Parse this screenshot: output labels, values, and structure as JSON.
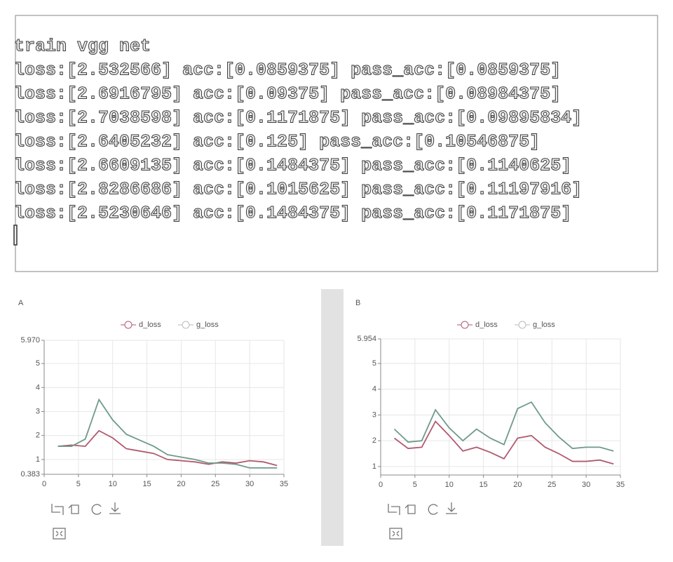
{
  "terminal": {
    "lines": [
      "train vgg net",
      "loss:[2.532566] acc:[0.0859375] pass_acc:[0.0859375]",
      "loss:[2.6916795] acc:[0.09375] pass_acc:[0.08984375]",
      "loss:[2.7038598] acc:[0.1171875] pass_acc:[0.09895834]",
      "loss:[2.6405232] acc:[0.125] pass_acc:[0.10546875]",
      "loss:[2.6609135] acc:[0.1484375] pass_acc:[0.1140625]",
      "loss:[2.8286686] acc:[0.1015625] pass_acc:[0.11197916]",
      "loss:[2.5230646] acc:[0.1484375] pass_acc:[0.1171875]"
    ]
  },
  "chart_data": [
    {
      "type": "line",
      "title": "A",
      "grid": true,
      "x": [
        2,
        4,
        6,
        8,
        10,
        12,
        14,
        16,
        18,
        20,
        22,
        24,
        26,
        28,
        30,
        32,
        34
      ],
      "series": [
        {
          "name": "d_loss",
          "color": "#b25a6e",
          "values": [
            1.55,
            1.6,
            1.55,
            2.2,
            1.9,
            1.45,
            1.35,
            1.25,
            1.0,
            0.95,
            0.9,
            0.8,
            0.9,
            0.85,
            0.95,
            0.9,
            0.75
          ]
        },
        {
          "name": "g_loss",
          "color": "#6f9a8b",
          "values": [
            1.55,
            1.55,
            1.85,
            3.5,
            2.65,
            2.05,
            1.8,
            1.55,
            1.2,
            1.1,
            1.0,
            0.85,
            0.85,
            0.8,
            0.65,
            0.65,
            0.65
          ]
        }
      ],
      "xlim": [
        0,
        35
      ],
      "xticks": [
        0,
        5,
        10,
        15,
        20,
        25,
        30,
        35
      ],
      "ylim": [
        0.383,
        5.97
      ],
      "yticks": [
        0.383,
        1,
        2,
        3,
        4,
        5,
        {
          "value": 5.97,
          "label": "5.970"
        }
      ]
    },
    {
      "type": "line",
      "title": "B",
      "grid": true,
      "x": [
        2,
        4,
        6,
        8,
        10,
        12,
        14,
        16,
        18,
        20,
        22,
        24,
        26,
        28,
        30,
        32,
        34
      ],
      "series": [
        {
          "name": "d_loss",
          "color": "#b25a6e",
          "values": [
            2.1,
            1.7,
            1.75,
            2.75,
            2.2,
            1.6,
            1.75,
            1.55,
            1.3,
            2.1,
            2.2,
            1.75,
            1.5,
            1.2,
            1.2,
            1.25,
            1.1
          ]
        },
        {
          "name": "g_loss",
          "color": "#6f9a8b",
          "values": [
            2.45,
            1.95,
            2.0,
            3.2,
            2.5,
            2.0,
            2.45,
            2.1,
            1.85,
            3.25,
            3.5,
            2.7,
            2.15,
            1.7,
            1.75,
            1.75,
            1.6
          ]
        }
      ],
      "xlim": [
        0,
        35
      ],
      "xticks": [
        0,
        5,
        10,
        15,
        20,
        25,
        30,
        35
      ],
      "ylim": [
        0.67,
        5.954
      ],
      "yticks": [
        1,
        2,
        3,
        4,
        5,
        5.954
      ]
    }
  ]
}
